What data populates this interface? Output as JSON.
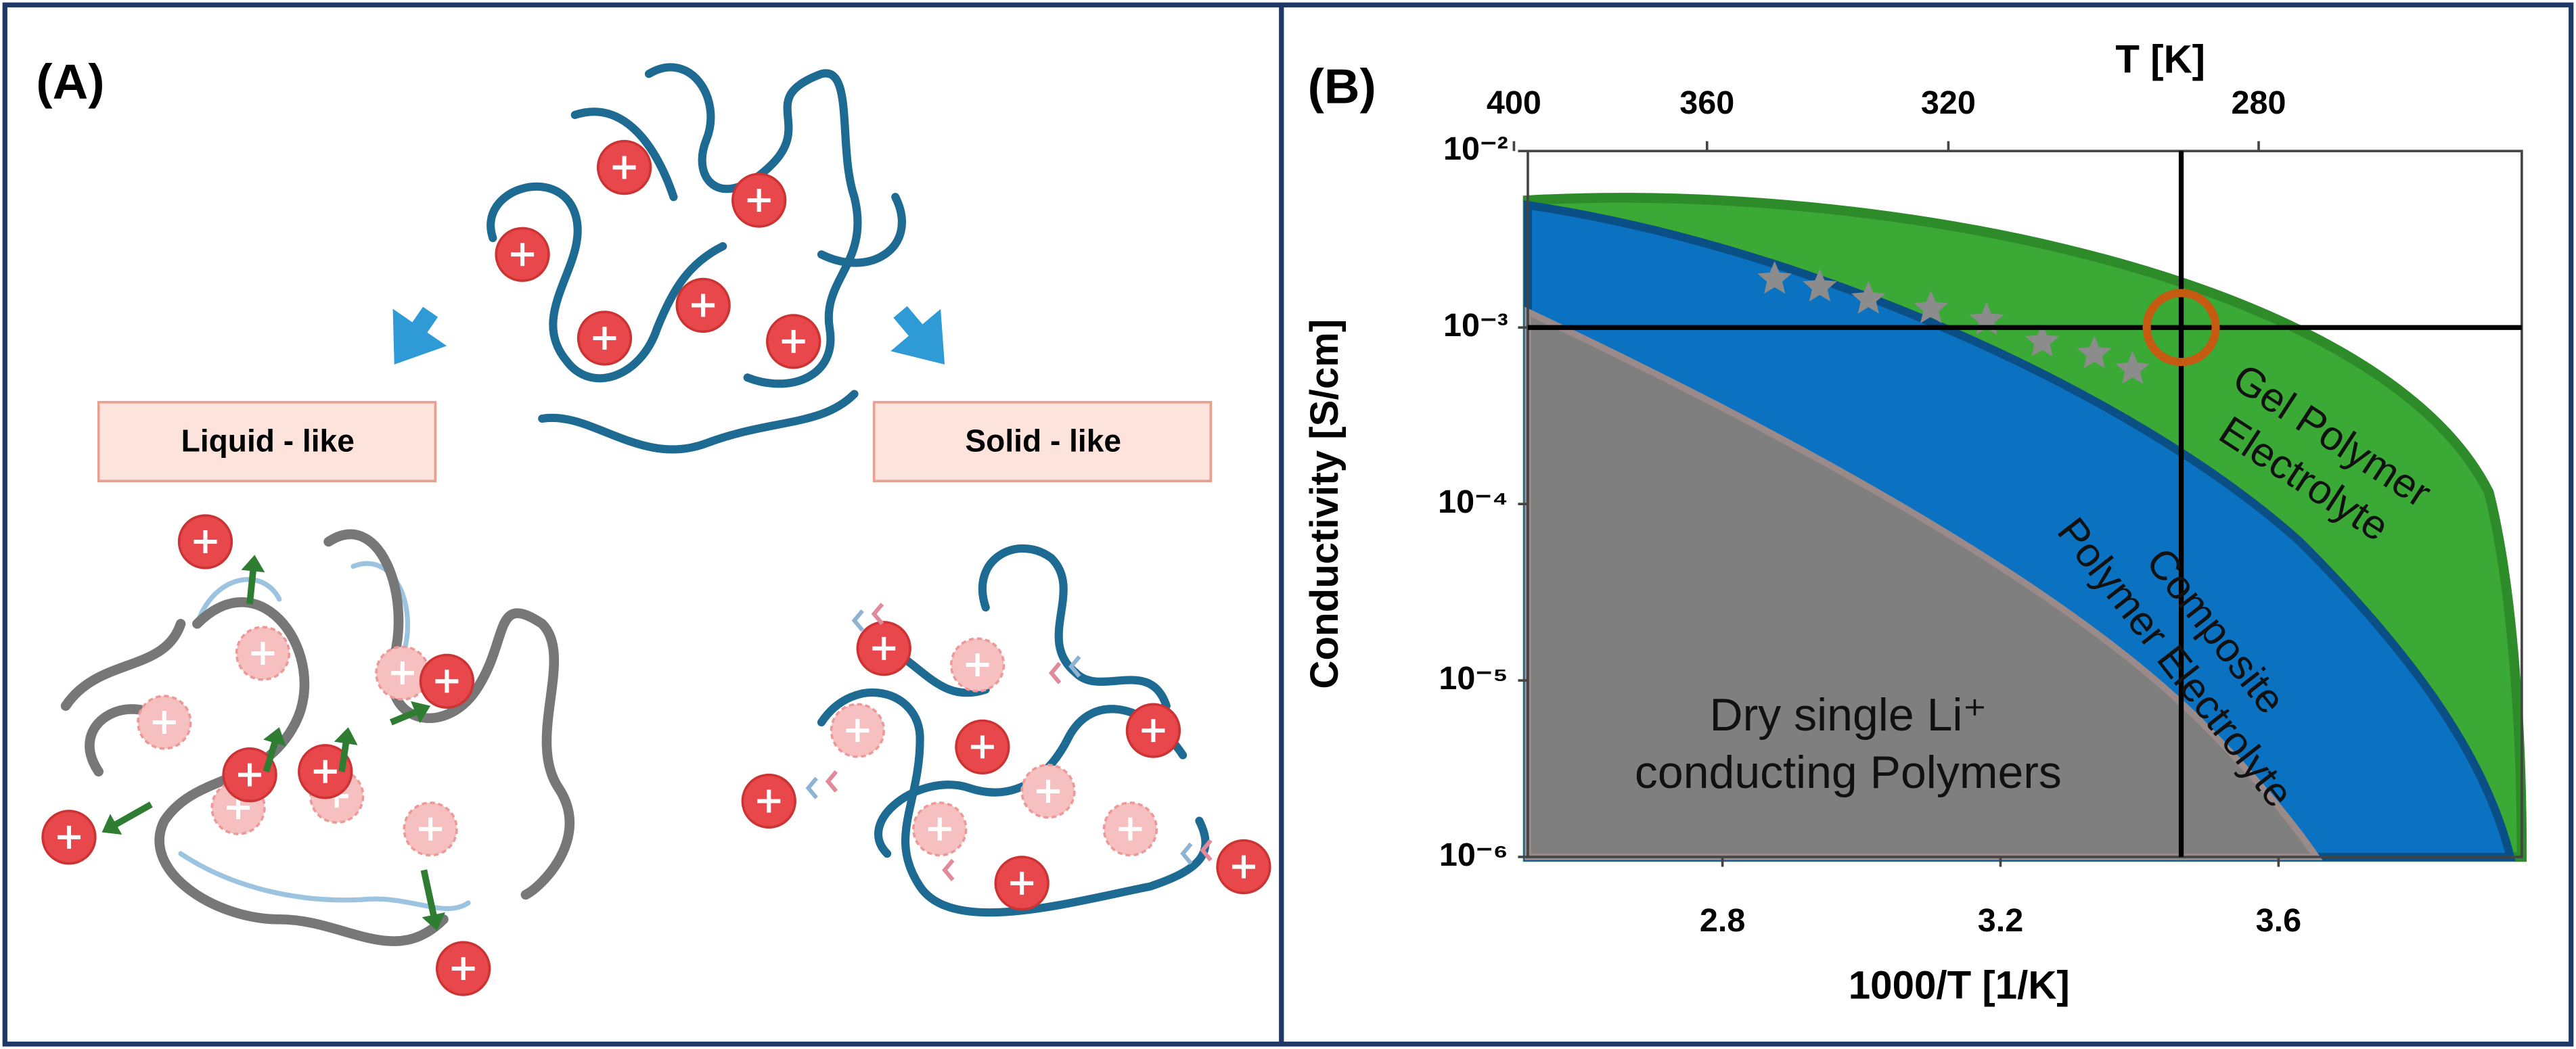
{
  "panel_a": {
    "label": "(A)",
    "liquid_label": "Liquid - like",
    "solid_label": "Solid - like"
  },
  "chart_data": {
    "type": "scatter",
    "panel_label": "(B)",
    "xlabel": "1000/T [1/K]",
    "ylabel": "Conductivity [S/cm]",
    "top_axis_label": "T [K]",
    "xlim": [
      2.52,
      3.95
    ],
    "ylim": [
      1e-06,
      0.01
    ],
    "log_y": true,
    "xticks": [
      2.8,
      3.2,
      3.6
    ],
    "top_ticks": [
      400,
      360,
      320,
      280
    ],
    "yticks": [
      {
        "value": 1e-06,
        "label": "10⁻⁶"
      },
      {
        "value": 1e-05,
        "label": "10⁻⁵"
      },
      {
        "value": 0.0001,
        "label": "10⁻⁴"
      },
      {
        "value": 0.001,
        "label": "10⁻³"
      },
      {
        "value": 0.01,
        "label": "10⁻²"
      }
    ],
    "x": [
      2.875,
      2.94,
      3.01,
      3.1,
      3.18,
      3.26,
      3.335,
      3.39
    ],
    "values": [
      0.00188,
      0.0017,
      0.00145,
      0.00128,
      0.0011,
      0.00083,
      0.00071,
      0.00058
    ],
    "color": "#8c8c8c",
    "marker": "star",
    "reference_x": 3.46,
    "reference_y": 0.001,
    "reference_color": "#c55a11",
    "region_labels": [
      [
        "Gel Polymer",
        "Electrolyte"
      ],
      [
        "Composite",
        "Polymer Electrolyte"
      ],
      [
        "Dry single Li⁺",
        "conducting Polymers"
      ]
    ]
  }
}
